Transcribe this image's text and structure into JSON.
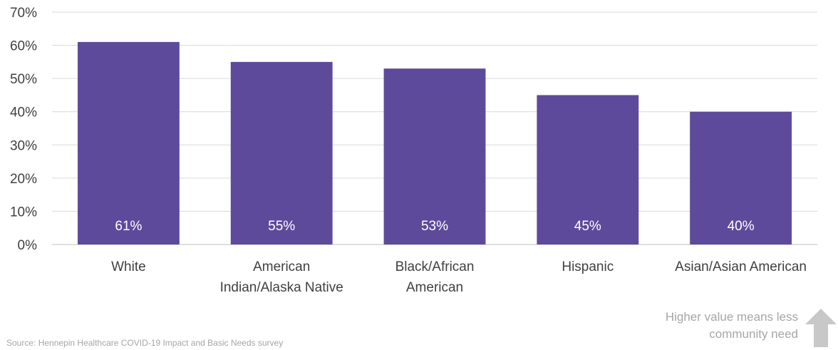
{
  "chart_data": {
    "type": "bar",
    "categories": [
      "White",
      "American Indian/Alaska Native",
      "Black/African American",
      "Hispanic",
      "Asian/Asian American"
    ],
    "category_lines": [
      [
        "White"
      ],
      [
        "American",
        "Indian/Alaska Native"
      ],
      [
        "Black/African",
        "American"
      ],
      [
        "Hispanic"
      ],
      [
        "Asian/Asian American"
      ]
    ],
    "values": [
      61,
      55,
      53,
      45,
      40
    ],
    "data_labels": [
      "61%",
      "55%",
      "53%",
      "45%",
      "40%"
    ],
    "ylim": [
      0,
      70
    ],
    "yticks": [
      0,
      10,
      20,
      30,
      40,
      50,
      60,
      70
    ],
    "ytick_labels": [
      "0%",
      "10%",
      "20%",
      "30%",
      "40%",
      "50%",
      "60%",
      "70%"
    ],
    "grid": true,
    "bar_color": "#5e4a9b",
    "title": "",
    "xlabel": "",
    "ylabel": ""
  },
  "note": {
    "line1": "Higher value means less",
    "line2": "community need",
    "icon": "up-arrow-icon",
    "color": "#a6a6a6"
  },
  "source": "Source: Hennepin Healthcare COVID-19 Impact and Basic Needs survey"
}
